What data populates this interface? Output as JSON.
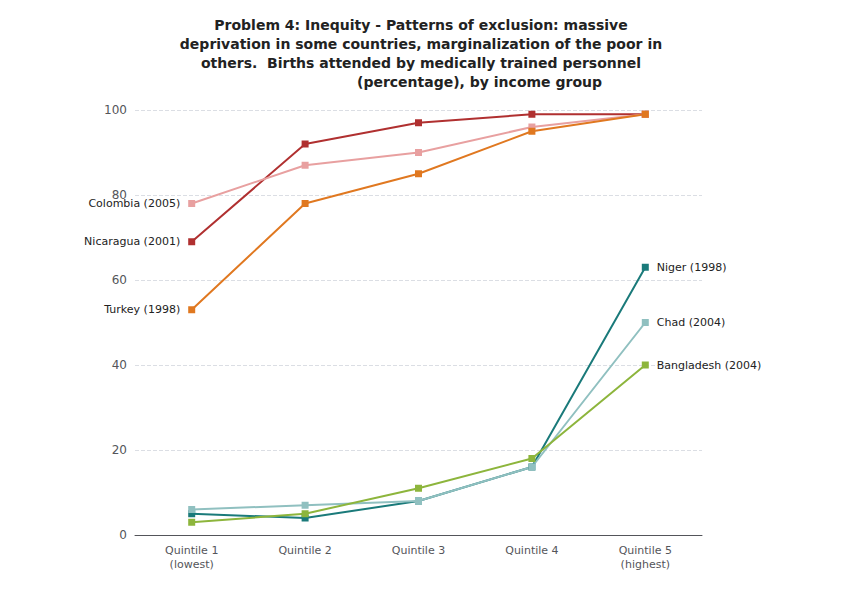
{
  "chart_data": {
    "type": "line",
    "title": "Problem 4: Inequity - Patterns of exclusion: massive\ndeprivation in some countries, marginalization of the poor in\nothers.  Births attended by medically trained personnel\n                        (percentage), by income group",
    "categories": [
      "Quintile 1\n(lowest)",
      "Quintile 2",
      "Quintile 3",
      "Quintile 4",
      "Quintile 5\n(highest)"
    ],
    "series": [
      {
        "name": "Nicaragua (2001)",
        "color": "#b03030",
        "values": [
          69,
          92,
          97,
          99,
          99
        ]
      },
      {
        "name": "Colombia (2005)",
        "color": "#e8a0a0",
        "values": [
          78,
          87,
          90,
          96,
          99
        ]
      },
      {
        "name": "Turkey (1998)",
        "color": "#e07820",
        "values": [
          53,
          78,
          85,
          95,
          99
        ]
      },
      {
        "name": "Niger (1998)",
        "color": "#1a7a7a",
        "values": [
          5,
          4,
          8,
          16,
          63
        ]
      },
      {
        "name": "Chad (2004)",
        "color": "#90c0c0",
        "values": [
          6,
          7,
          8,
          16,
          50
        ]
      },
      {
        "name": "Bangladesh (2004)",
        "color": "#8db53c",
        "values": [
          3,
          5,
          11,
          18,
          40
        ]
      }
    ],
    "annotations": [
      {
        "text": "Nicaragua (2001)",
        "x": "Quintile 1\n(lowest)",
        "y": 69
      },
      {
        "text": "Colombia (2005)",
        "x": "Quintile 1\n(lowest)",
        "y": 78
      },
      {
        "text": "Turkey (1998)",
        "x": "Quintile 1\n(lowest)",
        "y": 53
      },
      {
        "text": "Niger (1998)",
        "x": "Quintile 5\n(highest)",
        "y": 63
      },
      {
        "text": "Chad (2004)",
        "x": "Quintile 5\n(highest)",
        "y": 50
      },
      {
        "text": "Bangladesh (2004)",
        "x": "Quintile 5\n(highest)",
        "y": 40
      }
    ],
    "ylim": [
      0,
      100
    ],
    "yticks": [
      0,
      20,
      40,
      60,
      80,
      100
    ],
    "grid": true,
    "marker": "square"
  }
}
